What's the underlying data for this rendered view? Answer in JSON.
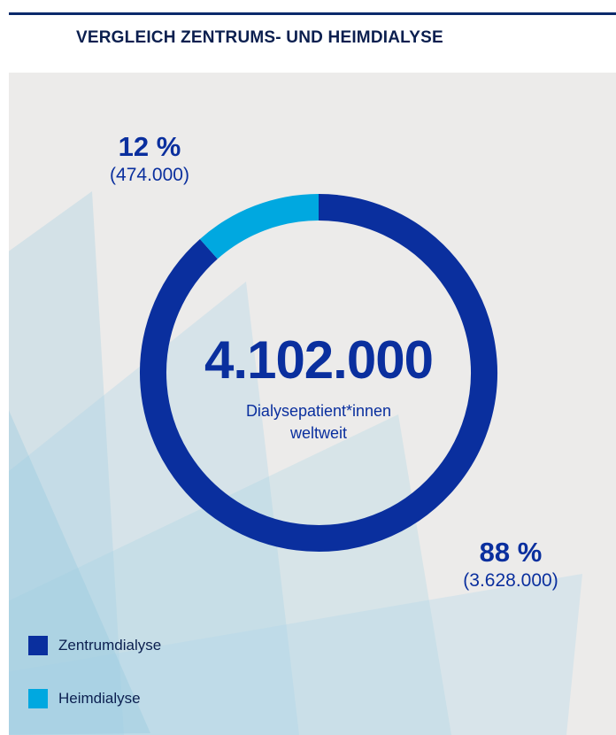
{
  "title": "VERGLEICH ZENTRUMS- UND HEIMDIALYSE",
  "colors": {
    "zentrum": "#0a2f9e",
    "heim": "#00a8e0",
    "panel": "#ecebea",
    "rule": "#0a2a6b"
  },
  "chart_data": {
    "type": "pie",
    "total": "4.102.000",
    "total_label_line1": "Dialysepatient*innen",
    "total_label_line2": "weltweit",
    "series": [
      {
        "name": "Zentrumdialyse",
        "value": 3628000,
        "percent": 88,
        "percent_label": "88 %",
        "value_label": "(3.628.000)"
      },
      {
        "name": "Heimdialyse",
        "value": 474000,
        "percent": 12,
        "percent_label": "12 %",
        "value_label": "(474.000)"
      }
    ],
    "legend": {
      "placement": "bottom-left",
      "items": [
        "Zentrumdialyse",
        "Heimdialyse"
      ]
    }
  }
}
